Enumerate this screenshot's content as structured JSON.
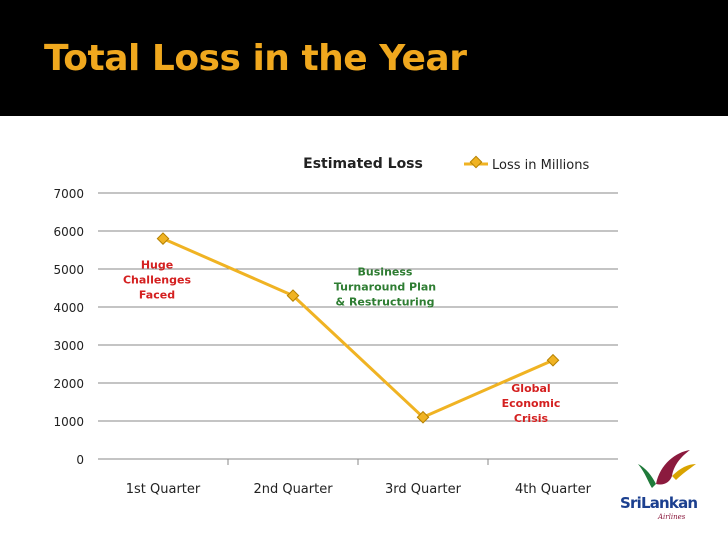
{
  "slide": {
    "title": "Total Loss in the Year",
    "title_color": "#f0a81e",
    "header_background": "#000000"
  },
  "chart_data": {
    "type": "line",
    "title": "Estimated Loss",
    "categories": [
      "1st Quarter",
      "2nd Quarter",
      "3rd Quarter",
      "4th Quarter"
    ],
    "series": [
      {
        "name": "Loss in Millions",
        "values": [
          5800,
          4300,
          1100,
          2600
        ],
        "color": "#f0b323"
      }
    ],
    "ylim": [
      0,
      7000
    ],
    "yticks": [
      0,
      1000,
      2000,
      3000,
      4000,
      5000,
      6000,
      7000
    ],
    "grid": true,
    "legend": "top-right",
    "annotations": [
      {
        "category": "1st Quarter",
        "lines": [
          "Huge",
          "Challenges",
          "Faced"
        ],
        "color": "#d42020"
      },
      {
        "category": "2nd Quarter",
        "lines": [
          "Business",
          "Turnaround Plan",
          "& Restructuring"
        ],
        "color": "#2e7d32"
      },
      {
        "category": "4th Quarter",
        "lines": [
          "Global",
          "Economic",
          "Crisis"
        ],
        "color": "#d42020"
      }
    ]
  },
  "logo": {
    "text": "SriLankan",
    "subtext": "Airlines",
    "icon": "peacock-logo-icon"
  }
}
